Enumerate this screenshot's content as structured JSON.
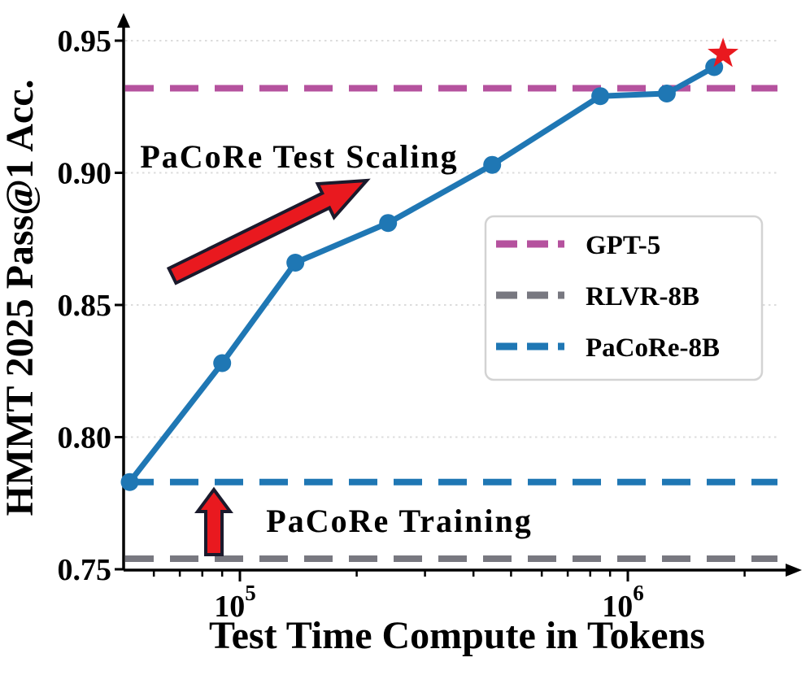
{
  "figure": {
    "background": "#ffffff"
  },
  "chart_data": {
    "type": "line",
    "title": "",
    "xlabel": "Test Time Compute in Tokens",
    "ylabel": "HMMT 2025 Pass@1 Acc.",
    "x_scale": "log",
    "xlim": [
      50000,
      2800000
    ],
    "ylim": [
      0.748,
      0.958
    ],
    "grid": "horizontal-dotted",
    "x_ticks": [
      {
        "value": 100000,
        "base": "10",
        "exp": "5"
      },
      {
        "value": 1000000,
        "base": "10",
        "exp": "6"
      }
    ],
    "y_ticks": [
      {
        "value": 0.75,
        "label": "0.75"
      },
      {
        "value": 0.8,
        "label": "0.80"
      },
      {
        "value": 0.85,
        "label": "0.85"
      },
      {
        "value": 0.9,
        "label": "0.90"
      },
      {
        "value": 0.95,
        "label": "0.95"
      }
    ],
    "series": [
      {
        "name": "PaCoRe-8B test-time scaling curve",
        "color": "#1f77b4",
        "style": "solid",
        "marker": "circle",
        "points": [
          [
            52000,
            0.783
          ],
          [
            90000,
            0.828
          ],
          [
            139000,
            0.866
          ],
          [
            241000,
            0.881
          ],
          [
            447000,
            0.903
          ],
          [
            849000,
            0.929
          ],
          [
            1260000,
            0.93
          ],
          [
            1670000,
            0.94
          ]
        ]
      }
    ],
    "hlines": [
      {
        "label": "GPT-5",
        "value": 0.932,
        "color": "#b5529e"
      },
      {
        "label": "RLVR-8B",
        "value": 0.754,
        "color": "#787880"
      },
      {
        "label": "PaCoRe-8B",
        "value": 0.783,
        "color": "#1f77b4"
      }
    ],
    "star_marker": {
      "x": 1760000,
      "y": 0.945,
      "color": "#e9191f",
      "shape": "star"
    },
    "annotations": [
      {
        "text": "PaCoRe Test Scaling",
        "color": "#e9191f",
        "arrow": "diagonal-up-right"
      },
      {
        "text": "PaCoRe Training",
        "color": "#e9191f",
        "arrow": "up"
      }
    ],
    "legend": {
      "position": "center-right",
      "entries": [
        {
          "label": "GPT-5",
          "color": "#b5529e"
        },
        {
          "label": "RLVR-8B",
          "color": "#787880"
        },
        {
          "label": "PaCoRe-8B",
          "color": "#1f77b4"
        }
      ]
    }
  }
}
